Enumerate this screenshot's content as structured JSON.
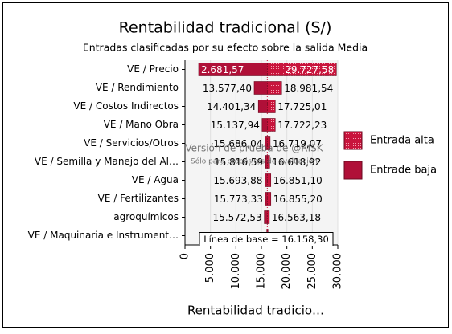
{
  "chart_data": {
    "type": "tornado",
    "title": "Rentabilidad tradicional (S/)",
    "subtitle": "Entradas clasificadas por su efecto sobre la salida Media",
    "x_label": "Rentabilidad tradicio…",
    "categories": [
      "VE / Precio",
      "VE / Rendimiento",
      "VE / Costos Indirectos",
      "VE / Mano Obra",
      "VE / Servicios/Otros",
      "VE / Semilla y Manejo del Al…",
      "VE / Agua",
      "VE / Fertilizantes",
      "agroquímicos",
      "VE / Maquinaria e Instrument…"
    ],
    "series": [
      {
        "name": "Entrada alta",
        "color": "#c8143c",
        "pattern": "dots",
        "values": [
          29727.58,
          18981.54,
          17725.01,
          17722.23,
          16719.07,
          16618.92,
          16851.1,
          16855.2,
          16563.18,
          16300
        ],
        "value_labels": [
          "29.727,58",
          "18.981,54",
          "17.725,01",
          "17.722,23",
          "16.719,07",
          "16.618,92",
          "16.851,10",
          "16.855,20",
          "16.563,18",
          null
        ]
      },
      {
        "name": "Entrade baja",
        "color": "#b01038",
        "pattern": "solid",
        "values": [
          2681.57,
          13577.4,
          14401.34,
          15137.94,
          15686.04,
          15816.59,
          15693.88,
          15773.33,
          15572.53,
          16050
        ],
        "value_labels": [
          "2.681,57",
          "13.577,40",
          "14.401,34",
          "15.137,94",
          "15.686,04",
          "15.816,59",
          "15.693,88",
          "15.773,33",
          "15.572,53",
          null
        ]
      }
    ],
    "baseline": {
      "value": 16158.3,
      "label": "Línea de base = 16.158,30"
    },
    "watermark": [
      "Versión de prueba de @RISK",
      "Sólo para propósitos de evaluación"
    ],
    "xlim": [
      0,
      30000
    ],
    "xticks": [
      0,
      {
        "value": 5000,
        "label": "5.000"
      },
      {
        "value": 10000,
        "label": "10.000"
      },
      {
        "value": 15000,
        "label": "15.000"
      },
      {
        "value": 20000,
        "label": "20.000"
      },
      {
        "value": 25000,
        "label": "25.000"
      },
      {
        "value": 30000,
        "label": "30.000"
      }
    ],
    "grid": true
  }
}
